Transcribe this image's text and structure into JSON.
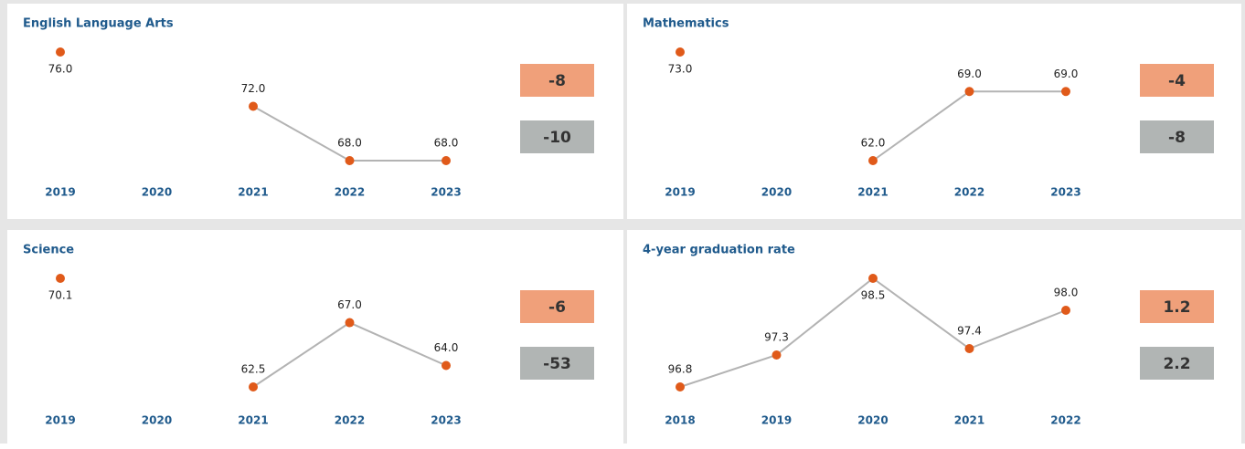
{
  "chart_data": [
    {
      "type": "line",
      "title": "English Language Arts",
      "categories": [
        "2019",
        "2020",
        "2021",
        "2022",
        "2023"
      ],
      "values": [
        76,
        null,
        72,
        68,
        68
      ],
      "value_labels": [
        "76.0",
        null,
        "72.0",
        "68.0",
        "68.0"
      ],
      "color": "#e05a1a",
      "line_color": "#b3b3b3",
      "badges": [
        {
          "value": -8,
          "color": "#f0a07a"
        },
        {
          "value": -10,
          "color": "#b1b5b4"
        }
      ]
    },
    {
      "type": "line",
      "title": "Mathematics",
      "categories": [
        "2019",
        "2020",
        "2021",
        "2022",
        "2023"
      ],
      "values": [
        73,
        null,
        62,
        69,
        69
      ],
      "value_labels": [
        "73.0",
        null,
        "62.0",
        "69.0",
        "69.0"
      ],
      "color": "#e05a1a",
      "line_color": "#b3b3b3",
      "badges": [
        {
          "value": -4,
          "color": "#f0a07a"
        },
        {
          "value": -8,
          "color": "#b1b5b4"
        }
      ]
    },
    {
      "type": "line",
      "title": "Science",
      "categories": [
        "2019",
        "2020",
        "2021",
        "2022",
        "2023"
      ],
      "values": [
        70.1,
        null,
        62.5,
        67,
        64
      ],
      "value_labels": [
        "70.1",
        null,
        "62.5",
        "67.0",
        "64.0"
      ],
      "color": "#e05a1a",
      "line_color": "#b3b3b3",
      "badges": [
        {
          "value": -6,
          "color": "#f0a07a"
        },
        {
          "value": -53,
          "color": "#b1b5b4"
        }
      ]
    },
    {
      "type": "line",
      "title": "4-year graduation rate",
      "categories": [
        "2018",
        "2019",
        "2020",
        "2021",
        "2022"
      ],
      "values": [
        96.8,
        97.3,
        98.5,
        97.4,
        98
      ],
      "value_labels": [
        "96.8",
        "97.3",
        "98.5",
        "97.4",
        "98.0"
      ],
      "color": "#e05a1a",
      "line_color": "#b3b3b3",
      "badges": [
        {
          "value": 1.2,
          "color": "#f0a07a"
        },
        {
          "value": 2.2,
          "color": "#b1b5b4"
        }
      ]
    }
  ]
}
